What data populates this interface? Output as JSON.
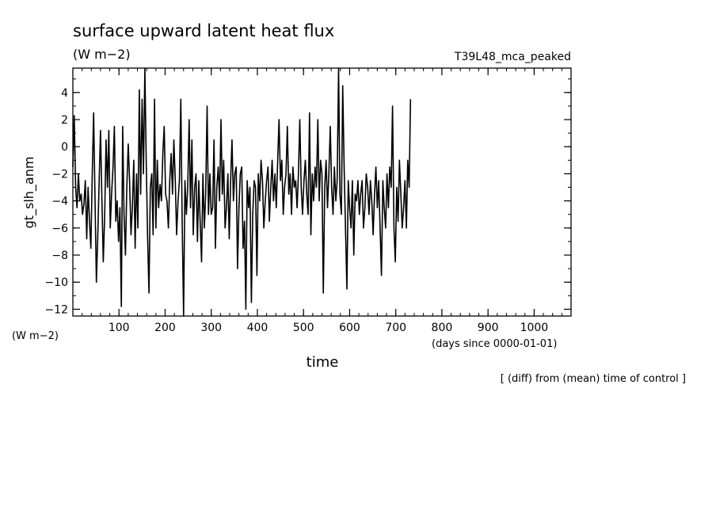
{
  "chart_data": {
    "type": "line",
    "title": "surface upward latent heat flux",
    "title_units": "(W m−2)",
    "run_label": "T39L48_mca_peaked",
    "xlabel": "time",
    "xunits": "(days since 0000-01-01)",
    "ylabel": "gt_slh_anm",
    "yunits": "(W m−2)",
    "footnote": "[ (diff) from (mean) time of control ]",
    "xlim": [
      0,
      1080
    ],
    "ylim": [
      -12.5,
      5.8
    ],
    "xticks": [
      100,
      200,
      300,
      400,
      500,
      600,
      700,
      800,
      900,
      1000
    ],
    "yticks": [
      4,
      2,
      0,
      -2,
      -4,
      -6,
      -8,
      -10,
      -12
    ],
    "x_minor_step": 20,
    "y_minor_step": 1,
    "x_step": 3,
    "series": [
      {
        "values": [
          -1.5,
          2.3,
          -3.0,
          -4.5,
          -2.0,
          -4.0,
          -3.5,
          -5.0,
          -4.2,
          -2.5,
          -6.8,
          -3.0,
          -5.5,
          -7.5,
          -2.0,
          2.5,
          -4.0,
          -10.0,
          -6.5,
          -2.5,
          1.2,
          -4.0,
          -8.5,
          -5.0,
          0.5,
          -3.0,
          1.2,
          -6.0,
          -3.5,
          -1.5,
          1.5,
          -5.5,
          -4.0,
          -7.0,
          -4.5,
          -11.8,
          1.5,
          -5.0,
          -8.0,
          -3.0,
          0.2,
          -2.5,
          -6.5,
          -4.5,
          -1.0,
          -7.5,
          -2.0,
          -6.0,
          4.2,
          -3.5,
          3.5,
          -2.0,
          5.8,
          -1.0,
          -6.5,
          -10.8,
          -3.0,
          -2.0,
          -6.5,
          3.5,
          -6.0,
          -1.0,
          -4.5,
          -2.8,
          -4.0,
          -0.5,
          1.5,
          -3.5,
          -4.0,
          -6.0,
          -2.5,
          -0.5,
          -3.5,
          0.5,
          -2.5,
          -6.5,
          -4.0,
          -2.5,
          3.5,
          -5.5,
          -12.5,
          -2.5,
          -5.0,
          -3.0,
          2.0,
          -4.5,
          0.5,
          -6.5,
          -3.0,
          -2.0,
          -7.0,
          -2.5,
          -5.5,
          -8.5,
          -2.0,
          -6.0,
          -3.5,
          3.0,
          -5.0,
          -2.0,
          -5.0,
          -4.5,
          0.5,
          -7.5,
          -3.0,
          -1.5,
          -4.0,
          2.0,
          -3.5,
          -1.0,
          -6.0,
          -4.5,
          -2.0,
          -6.8,
          -2.5,
          0.5,
          -4.0,
          -2.0,
          -1.5,
          -9.0,
          -4.5,
          -2.0,
          -1.5,
          -7.5,
          -5.5,
          -12.0,
          -2.5,
          -4.5,
          -3.0,
          -11.5,
          -5.0,
          -2.5,
          -3.0,
          -9.5,
          -2.0,
          -4.0,
          -1.0,
          -2.5,
          -6.0,
          -4.0,
          -2.5,
          -1.5,
          -5.5,
          -3.0,
          -1.0,
          -4.0,
          -2.0,
          -4.5,
          -1.0,
          2.0,
          -2.5,
          -1.0,
          -5.0,
          -3.0,
          -2.0,
          1.5,
          -3.5,
          -2.0,
          -5.0,
          -1.5,
          -3.0,
          -2.5,
          -4.5,
          -2.0,
          2.0,
          -3.0,
          -5.0,
          -2.5,
          -1.0,
          -3.5,
          -5.0,
          2.5,
          -6.5,
          -2.0,
          -4.0,
          -1.5,
          -3.0,
          2.0,
          -4.0,
          -1.0,
          -2.0,
          -10.8,
          -3.0,
          -1.0,
          -4.5,
          -2.0,
          1.5,
          -3.0,
          -5.0,
          -1.5,
          -4.0,
          -2.5,
          5.8,
          -3.5,
          -5.0,
          4.5,
          -1.5,
          -6.0,
          -10.5,
          -2.5,
          -4.5,
          -6.0,
          -2.5,
          -8.0,
          -3.5,
          -4.0,
          -2.5,
          -5.0,
          -3.5,
          -2.5,
          -6.0,
          -4.5,
          -2.0,
          -3.0,
          -5.0,
          -2.5,
          -4.0,
          -6.5,
          -3.5,
          -1.5,
          -4.5,
          -2.5,
          -6.0,
          -9.5,
          -2.5,
          -4.5,
          -6.0,
          -2.0,
          -4.5,
          -1.5,
          -3.0,
          3.0,
          -6.0,
          -8.5,
          -3.0,
          -5.5,
          -1.0,
          -3.5,
          -6.0,
          -4.5,
          -2.5,
          -6.0,
          -1.0,
          -3.0,
          3.5
        ]
      }
    ]
  }
}
